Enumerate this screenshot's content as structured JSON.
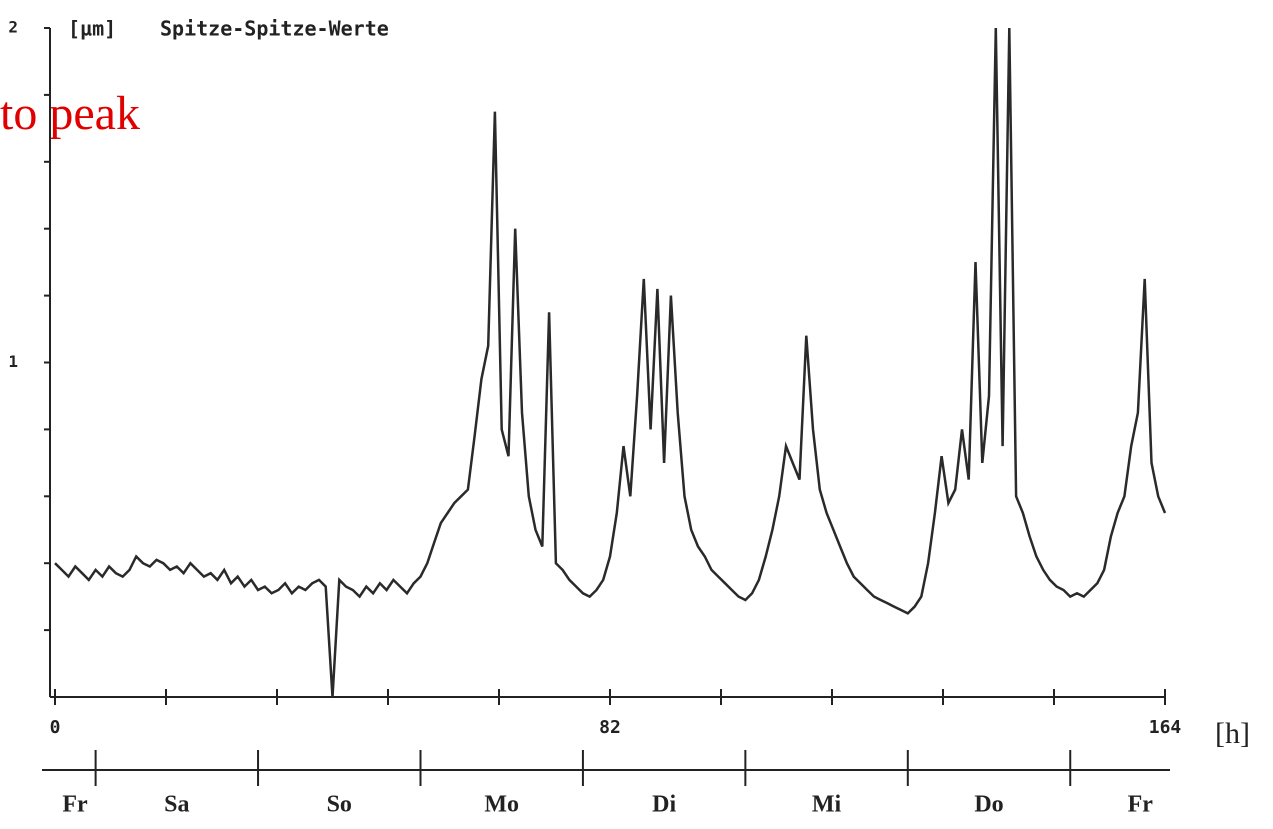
{
  "chart_data": {
    "type": "line",
    "title": "Spitze-Spitze-Werte",
    "y_unit": "[µm]",
    "x_unit": "[h]",
    "annotation": "to peak",
    "color": "#2a2a2a",
    "xlim": [
      0,
      164
    ],
    "ylim": [
      0,
      2
    ],
    "xticks": [
      0,
      82,
      164
    ],
    "yticks": [
      1,
      2
    ],
    "x_minor_ticks": [
      16.4,
      32.8,
      49.2,
      65.6,
      98.4,
      114.8,
      131.2,
      147.6
    ],
    "y_minor_ticks": [
      0.2,
      0.4,
      0.6,
      0.8,
      1.2,
      1.4,
      1.6,
      1.8
    ],
    "day_boundaries": [
      6,
      30,
      54,
      78,
      102,
      126,
      150
    ],
    "days": [
      "Fr",
      "Sa",
      "So",
      "Mo",
      "Di",
      "Mi",
      "Do",
      "Fr"
    ],
    "x": [
      0,
      1,
      2,
      3,
      4,
      5,
      6,
      7,
      8,
      9,
      10,
      11,
      12,
      13,
      14,
      15,
      16,
      17,
      18,
      19,
      20,
      21,
      22,
      23,
      24,
      25,
      26,
      27,
      28,
      29,
      30,
      31,
      32,
      33,
      34,
      35,
      36,
      37,
      38,
      39,
      40,
      41,
      42,
      43,
      44,
      45,
      46,
      47,
      48,
      49,
      50,
      51,
      52,
      53,
      54,
      55,
      56,
      57,
      58,
      59,
      60,
      61,
      62,
      63,
      64,
      65,
      66,
      67,
      68,
      69,
      70,
      71,
      72,
      73,
      74,
      75,
      76,
      77,
      78,
      79,
      80,
      81,
      82,
      83,
      84,
      85,
      86,
      87,
      88,
      89,
      90,
      91,
      92,
      93,
      94,
      95,
      96,
      97,
      98,
      99,
      100,
      101,
      102,
      103,
      104,
      105,
      106,
      107,
      108,
      109,
      110,
      111,
      112,
      113,
      114,
      115,
      116,
      117,
      118,
      119,
      120,
      121,
      122,
      123,
      124,
      125,
      126,
      127,
      128,
      129,
      130,
      131,
      132,
      133,
      134,
      135,
      136,
      137,
      138,
      139,
      140,
      141,
      142,
      143,
      144,
      145,
      146,
      147,
      148,
      149,
      150,
      151,
      152,
      153,
      154,
      155,
      156,
      157,
      158,
      159,
      160,
      161,
      162,
      163,
      164
    ],
    "values": [
      0.4,
      0.38,
      0.36,
      0.39,
      0.37,
      0.35,
      0.38,
      0.36,
      0.39,
      0.37,
      0.36,
      0.38,
      0.42,
      0.4,
      0.39,
      0.41,
      0.4,
      0.38,
      0.39,
      0.37,
      0.4,
      0.38,
      0.36,
      0.37,
      0.35,
      0.38,
      0.34,
      0.36,
      0.33,
      0.35,
      0.32,
      0.33,
      0.31,
      0.32,
      0.34,
      0.31,
      0.33,
      0.32,
      0.34,
      0.35,
      0.33,
      0,
      0.35,
      0.33,
      0.32,
      0.3,
      0.33,
      0.31,
      0.34,
      0.32,
      0.35,
      0.33,
      0.31,
      0.34,
      0.36,
      0.4,
      0.46,
      0.52,
      0.55,
      0.58,
      0.6,
      0.62,
      0.78,
      0.95,
      1.05,
      1.75,
      0.8,
      0.72,
      1.4,
      0.85,
      0.6,
      0.5,
      0.45,
      1.15,
      0.4,
      0.38,
      0.35,
      0.33,
      0.31,
      0.3,
      0.32,
      0.35,
      0.42,
      0.55,
      0.75,
      0.6,
      0.9,
      1.25,
      0.8,
      1.22,
      0.7,
      1.2,
      0.85,
      0.6,
      0.5,
      0.45,
      0.42,
      0.38,
      0.36,
      0.34,
      0.32,
      0.3,
      0.29,
      0.31,
      0.35,
      0.42,
      0.5,
      0.6,
      0.75,
      0.7,
      0.65,
      1.08,
      0.8,
      0.62,
      0.55,
      0.5,
      0.45,
      0.4,
      0.36,
      0.34,
      0.32,
      0.3,
      0.29,
      0.28,
      0.27,
      0.26,
      0.25,
      0.27,
      0.3,
      0.4,
      0.55,
      0.72,
      0.58,
      0.62,
      0.8,
      0.65,
      1.3,
      0.7,
      0.9,
      2.0,
      0.75,
      2.0,
      0.6,
      0.55,
      0.48,
      0.42,
      0.38,
      0.35,
      0.33,
      0.32,
      0.3,
      0.31,
      0.3,
      0.32,
      0.34,
      0.38,
      0.48,
      0.55,
      0.6,
      0.75,
      0.85,
      1.25,
      0.7,
      0.6,
      0.55
    ]
  }
}
